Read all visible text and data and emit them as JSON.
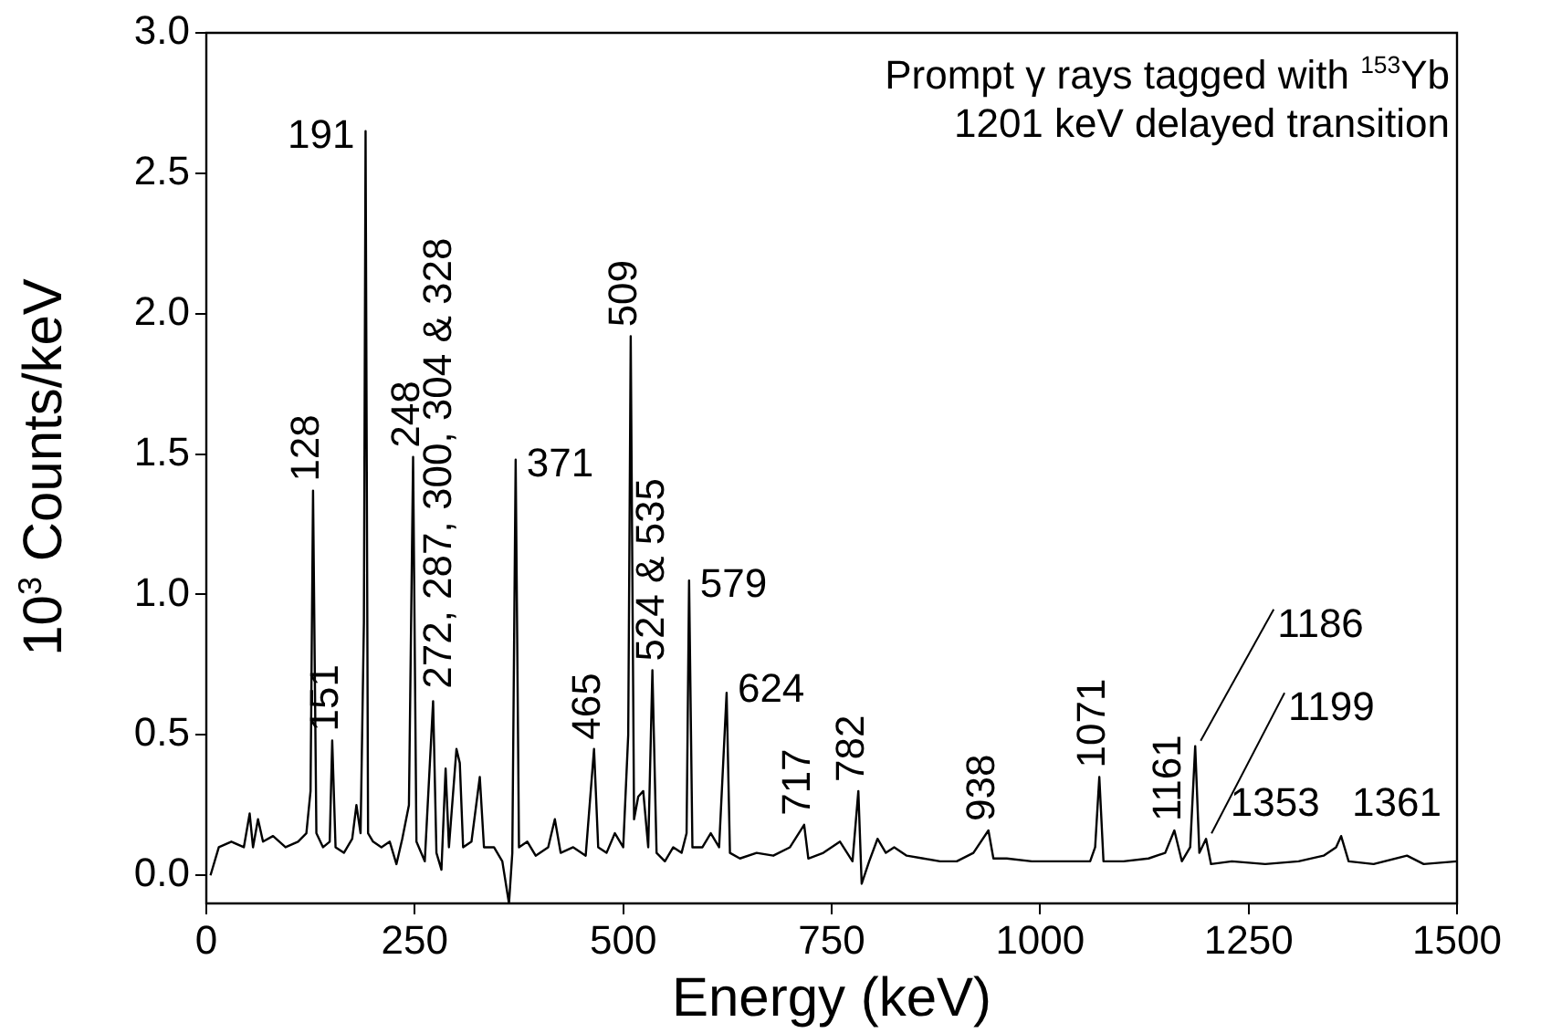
{
  "chart_data": {
    "type": "line",
    "xlabel": "Energy (keV)",
    "ylabel": "10$^{3}$ Counts/keV",
    "annotations": [
      "Prompt γ rays tagged with $^{153}$Yb",
      "1201 keV delayed transition",
      {
        "text": "128",
        "x": 128,
        "y": 1.37
      },
      {
        "text": "151",
        "x": 151,
        "y": 0.48
      },
      {
        "text": "191",
        "x": 191,
        "y": 2.65
      },
      {
        "text": "248",
        "x": 248,
        "y": 1.49
      },
      {
        "text": "272, 287, 300, 304 & 328",
        "x": 300,
        "y": 0.45
      },
      {
        "text": "371",
        "x": 371,
        "y": 1.48
      },
      {
        "text": "465",
        "x": 465,
        "y": 0.45
      },
      {
        "text": "509",
        "x": 509,
        "y": 1.92
      },
      {
        "text": "524 & 535",
        "x": 535,
        "y": 0.73
      },
      {
        "text": "579",
        "x": 579,
        "y": 1.05
      },
      {
        "text": "624",
        "x": 624,
        "y": 0.65
      },
      {
        "text": "717",
        "x": 717,
        "y": 0.18
      },
      {
        "text": "782",
        "x": 782,
        "y": 0.3
      },
      {
        "text": "938",
        "x": 938,
        "y": 0.16
      },
      {
        "text": "1071",
        "x": 1071,
        "y": 0.35
      },
      {
        "text": "1161",
        "x": 1161,
        "y": 0.16
      },
      {
        "text": "1186",
        "x": 1186,
        "y": 0.46
      },
      {
        "text": "1199",
        "x": 1199,
        "y": 0.13
      },
      {
        "text": "1353",
        "x": 1353,
        "y": 0.14
      },
      {
        "text": "1361",
        "x": 1361,
        "y": 0.14
      }
    ],
    "x": [
      5,
      15,
      30,
      45,
      52,
      56,
      62,
      68,
      80,
      95,
      110,
      120,
      125,
      128,
      132,
      140,
      148,
      151,
      155,
      165,
      175,
      180,
      185,
      189,
      191,
      194,
      200,
      210,
      220,
      228,
      235,
      243,
      248,
      252,
      262,
      272,
      276,
      282,
      287,
      291,
      300,
      304,
      308,
      318,
      328,
      333,
      345,
      355,
      363,
      367,
      371,
      375,
      385,
      395,
      410,
      418,
      425,
      440,
      455,
      465,
      470,
      480,
      490,
      500,
      506,
      509,
      513,
      518,
      524,
      530,
      535,
      540,
      550,
      560,
      570,
      576,
      579,
      583,
      595,
      605,
      615,
      624,
      628,
      640,
      660,
      680,
      700,
      717,
      722,
      740,
      760,
      775,
      782,
      786,
      795,
      805,
      815,
      825,
      840,
      860,
      880,
      900,
      920,
      938,
      944,
      960,
      990,
      1030,
      1060,
      1066,
      1071,
      1076,
      1100,
      1130,
      1150,
      1161,
      1170,
      1180,
      1186,
      1191,
      1199,
      1205,
      1230,
      1270,
      1310,
      1340,
      1355,
      1361,
      1370,
      1400,
      1440,
      1460,
      1500
    ],
    "series": [
      {
        "color": "#000000",
        "values": [
          0.0,
          0.1,
          0.12,
          0.1,
          0.22,
          0.1,
          0.2,
          0.12,
          0.14,
          0.1,
          0.12,
          0.15,
          0.3,
          1.37,
          0.15,
          0.1,
          0.12,
          0.48,
          0.1,
          0.08,
          0.13,
          0.25,
          0.15,
          0.9,
          2.65,
          0.15,
          0.12,
          0.1,
          0.12,
          0.04,
          0.13,
          0.25,
          1.49,
          0.12,
          0.05,
          0.62,
          0.08,
          0.02,
          0.38,
          0.1,
          0.45,
          0.4,
          0.1,
          0.12,
          0.35,
          0.1,
          0.1,
          0.05,
          -0.1,
          0.08,
          1.48,
          0.1,
          0.12,
          0.07,
          0.1,
          0.2,
          0.08,
          0.1,
          0.07,
          0.45,
          0.1,
          0.08,
          0.15,
          0.1,
          0.5,
          1.92,
          0.2,
          0.28,
          0.3,
          0.1,
          0.73,
          0.08,
          0.05,
          0.1,
          0.08,
          0.15,
          1.05,
          0.1,
          0.1,
          0.15,
          0.1,
          0.65,
          0.08,
          0.06,
          0.08,
          0.07,
          0.1,
          0.18,
          0.06,
          0.08,
          0.12,
          0.05,
          0.3,
          -0.03,
          0.05,
          0.13,
          0.08,
          0.1,
          0.07,
          0.06,
          0.05,
          0.05,
          0.08,
          0.16,
          0.06,
          0.06,
          0.05,
          0.05,
          0.05,
          0.1,
          0.35,
          0.05,
          0.05,
          0.06,
          0.08,
          0.16,
          0.05,
          0.1,
          0.46,
          0.08,
          0.13,
          0.04,
          0.05,
          0.04,
          0.05,
          0.07,
          0.1,
          0.14,
          0.05,
          0.04,
          0.07,
          0.04,
          0.05
        ]
      }
    ],
    "xlim": [
      0,
      1500
    ],
    "xticks": [
      0,
      250,
      500,
      750,
      1000,
      1250,
      1500
    ],
    "ylim": [
      -0.1,
      3.0
    ],
    "yticks": [
      {
        "value": 0,
        "label": "0.0"
      },
      {
        "value": 0.5,
        "label": "0.5"
      },
      {
        "value": 1,
        "label": "1.0"
      },
      {
        "value": 1.5,
        "label": "1.5"
      },
      {
        "value": 2,
        "label": "2.0"
      },
      {
        "value": 2.5,
        "label": "2.5"
      },
      {
        "value": 3,
        "label": "3.0"
      }
    ],
    "grid": false,
    "legend": false,
    "marker": "none",
    "line_style": "solid"
  }
}
